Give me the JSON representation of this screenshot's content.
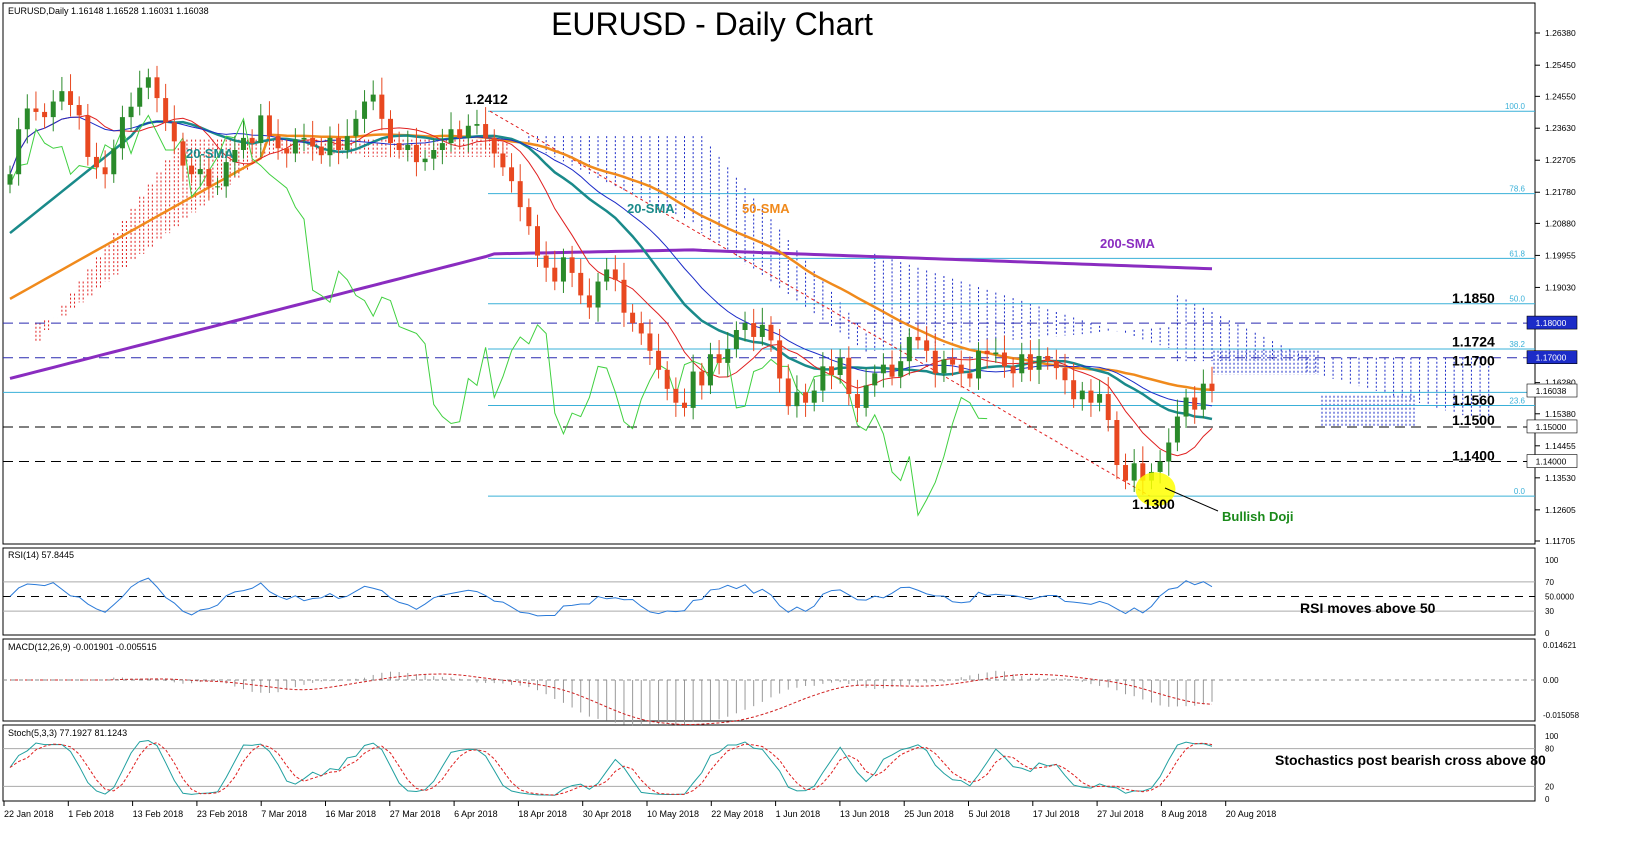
{
  "title": "EURUSD - Daily Chart",
  "header_info": "EURUSD,Daily  1.16148 1.16528 1.16031 1.16038",
  "colors": {
    "sma20": "#1a8a8a",
    "sma50": "#f08a1c",
    "sma200": "#8a2cc0",
    "tenkan": "#e02020",
    "kijun": "#1c2cc8",
    "chikou": "#40d040",
    "cloud_bull": "#e02020",
    "cloud_bear": "#1c2cc8",
    "fib": "#3ab0d8",
    "bull_candle": "#2a8a2a",
    "bear_candle": "#e84820",
    "rsi": "#2a7ad8",
    "macd": "#d02020",
    "stoch_main": "#20a0a0",
    "stoch_signal": "#e02020",
    "highlight": "#ffff00",
    "price_box": "#1c2cc8"
  },
  "chart_data": {
    "type": "candlestick",
    "symbol": "EURUSD",
    "timeframe": "Daily",
    "ohlc_current": {
      "open": 1.16148,
      "high": 1.16528,
      "low": 1.16031,
      "close": 1.16038
    },
    "y_range": [
      1.117,
      1.2675
    ],
    "x_labels": [
      "22 Jan 2018",
      "1 Feb 2018",
      "13 Feb 2018",
      "23 Feb 2018",
      "7 Mar 2018",
      "16 Mar 2018",
      "27 Mar 2018",
      "6 Apr 2018",
      "18 Apr 2018",
      "30 Apr 2018",
      "10 May 2018",
      "22 May 2018",
      "1 Jun 2018",
      "13 Jun 2018",
      "25 Jun 2018",
      "5 Jul 2018",
      "17 Jul 2018",
      "27 Jul 2018",
      "8 Aug 2018",
      "20 Aug 2018"
    ],
    "price_ticks": [
      "1.26380",
      "1.25450",
      "1.24550",
      "1.23630",
      "1.22705",
      "1.21780",
      "1.20880",
      "1.19955",
      "1.19030",
      "1.18000",
      "1.17000",
      "1.16280",
      "1.16038",
      "1.15380",
      "1.15000",
      "1.14455",
      "1.14000",
      "1.13530",
      "1.12605",
      "1.11705"
    ],
    "closes": [
      1.223,
      1.236,
      1.242,
      1.241,
      1.2395,
      1.244,
      1.247,
      1.243,
      1.24,
      1.228,
      1.225,
      1.223,
      1.2305,
      1.2395,
      1.2425,
      1.248,
      1.251,
      1.245,
      1.238,
      1.2325,
      1.2255,
      1.223,
      1.2245,
      1.2195,
      1.2195,
      1.2265,
      1.23,
      1.2335,
      1.232,
      1.24,
      1.234,
      1.2305,
      1.229,
      1.233,
      1.2335,
      1.231,
      1.2285,
      1.2335,
      1.23,
      1.234,
      1.239,
      1.244,
      1.246,
      1.239,
      1.232,
      1.23,
      1.2315,
      1.2265,
      1.2275,
      1.23,
      1.232,
      1.236,
      1.2335,
      1.237,
      1.2375,
      1.2335,
      1.229,
      1.225,
      1.221,
      1.2135,
      1.208,
      1.1995,
      1.196,
      1.192,
      1.199,
      1.1945,
      1.188,
      1.1845,
      1.192,
      1.1955,
      1.1925,
      1.183,
      1.18,
      1.177,
      1.172,
      1.1665,
      1.161,
      1.157,
      1.1555,
      1.166,
      1.162,
      1.171,
      1.1685,
      1.1725,
      1.178,
      1.18,
      1.176,
      1.1795,
      1.175,
      1.164,
      1.156,
      1.16,
      1.157,
      1.1605,
      1.1675,
      1.165,
      1.17,
      1.1595,
      1.1555,
      1.162,
      1.1655,
      1.168,
      1.1645,
      1.169,
      1.176,
      1.175,
      1.172,
      1.1655,
      1.1695,
      1.168,
      1.1655,
      1.164,
      1.172,
      1.171,
      1.1715,
      1.1675,
      1.1655,
      1.171,
      1.1665,
      1.1705,
      1.169,
      1.167,
      1.1635,
      1.158,
      1.1605,
      1.157,
      1.1595,
      1.152,
      1.139,
      1.1345,
      1.1395,
      1.1345,
      1.137,
      1.14,
      1.1455,
      1.153,
      1.1585,
      1.155,
      1.1625,
      1.1604
    ],
    "sma20_label": "20-SMA",
    "sma50_label": "50-SMA",
    "sma200_label": "200-SMA",
    "sma20_label_left": "20-SMA",
    "annotations": {
      "high": "1.2412",
      "low": "1.1300",
      "doji": "Bullish Doji",
      "levels": [
        "1.1850",
        "1.1724",
        "1.1700",
        "1.1560",
        "1.1500",
        "1.1400"
      ]
    },
    "fib_levels": [
      {
        "pct": "100.0",
        "price": 1.2412
      },
      {
        "pct": "78.6",
        "price": 1.2174
      },
      {
        "pct": "61.8",
        "price": 1.1987
      },
      {
        "pct": "50.0",
        "price": 1.1856
      },
      {
        "pct": "38.2",
        "price": 1.1725
      },
      {
        "pct": "23.6",
        "price": 1.1562
      },
      {
        "pct": "0.0",
        "price": 1.13
      }
    ],
    "rsi": {
      "label": "RSI(14) 57.8445",
      "levels": [
        "100",
        "70",
        "50.0000",
        "30",
        "0"
      ],
      "value": 57.8445,
      "note": "RSI moves above 50"
    },
    "macd": {
      "label": "MACD(12,26,9) -0.001901 -0.005515",
      "ticks": [
        "0.014621",
        "0.00",
        "-0.015058"
      ],
      "main": -0.001901,
      "signal": -0.005515
    },
    "stoch": {
      "label": "Stoch(5,3,3) 77.1927 81.1243",
      "ticks": [
        "100",
        "80",
        "20",
        "0"
      ],
      "main": 77.1927,
      "signal": 81.1243,
      "note": "Stochastics post bearish cross above 80"
    }
  }
}
